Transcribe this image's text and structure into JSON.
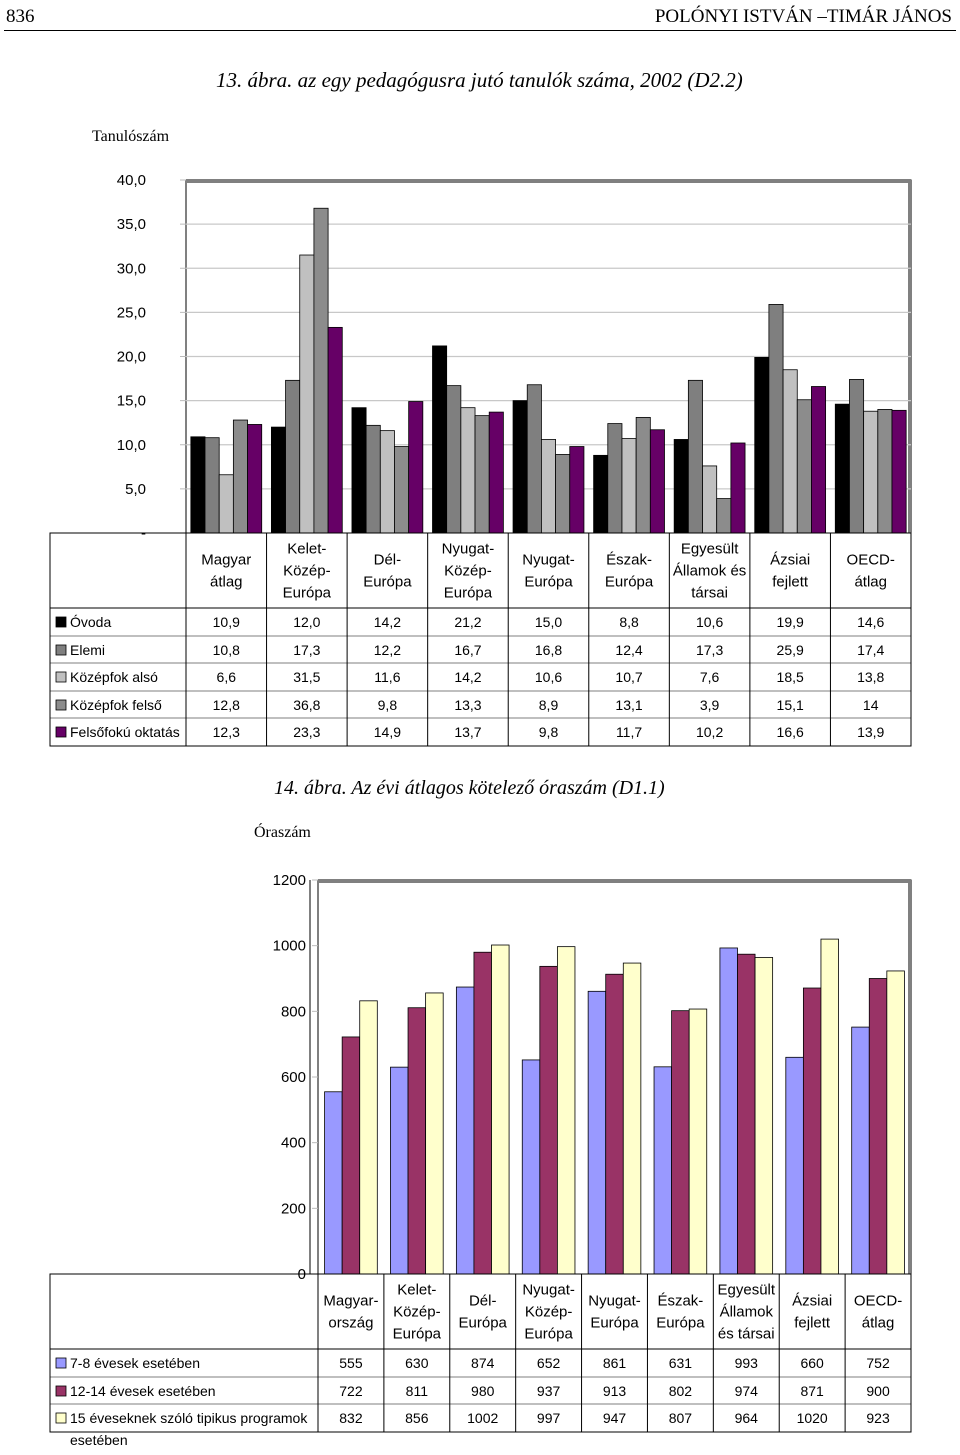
{
  "header": {
    "page_number": "836",
    "authors": "POLÓNYI ISTVÁN –TIMÁR JÁNOS"
  },
  "chart_data": [
    {
      "type": "bar",
      "title": "13. ábra. az egy pedagógusra jutó tanulók száma, 2002 (D2.2)",
      "ylabel": "Tanulószám",
      "ylim": [
        0,
        40
      ],
      "yticks": [
        "40,0",
        "35,0",
        "30,0",
        "25,0",
        "20,0",
        "15,0",
        "10,0",
        "5,0",
        "-"
      ],
      "grid": true,
      "legend": "table-below",
      "categories": [
        [
          "Magyar",
          "átlag"
        ],
        [
          "Kelet-",
          "Közép-",
          "Európa"
        ],
        [
          "Dél-",
          "Európa"
        ],
        [
          "Nyugat-",
          "Közép-",
          "Európa"
        ],
        [
          "Nyugat-",
          "Európa"
        ],
        [
          "Észak-",
          "Európa"
        ],
        [
          "Egyesült",
          "Államok és",
          "társai"
        ],
        [
          "Ázsiai",
          "fejlett"
        ],
        [
          "OECD-",
          "átlag"
        ]
      ],
      "series": [
        {
          "name": "Óvoda",
          "color": "#000000",
          "values": [
            10.9,
            12.0,
            14.2,
            21.2,
            15.0,
            8.8,
            10.6,
            19.9,
            14.6
          ],
          "labels": [
            "10,9",
            "12,0",
            "14,2",
            "21,2",
            "15,0",
            "8,8",
            "10,6",
            "19,9",
            "14,6"
          ]
        },
        {
          "name": "Elemi",
          "color": "#7f7f7f",
          "values": [
            10.8,
            17.3,
            12.2,
            16.7,
            16.8,
            12.4,
            17.3,
            25.9,
            17.4
          ],
          "labels": [
            "10,8",
            "17,3",
            "12,2",
            "16,7",
            "16,8",
            "12,4",
            "17,3",
            "25,9",
            "17,4"
          ]
        },
        {
          "name": "Középfok alsó",
          "color": "#c0c0c0",
          "values": [
            6.6,
            31.5,
            11.6,
            14.2,
            10.6,
            10.7,
            7.6,
            18.5,
            13.8
          ],
          "labels": [
            "6,6",
            "31,5",
            "11,6",
            "14,2",
            "10,6",
            "10,7",
            "7,6",
            "18,5",
            "13,8"
          ]
        },
        {
          "name": "Középfok felső",
          "color": "#8c8c8c",
          "values": [
            12.8,
            36.8,
            9.8,
            13.3,
            8.9,
            13.1,
            3.9,
            15.1,
            14
          ],
          "labels": [
            "12,8",
            "36,8",
            "9,8",
            "13,3",
            "8,9",
            "13,1",
            "3,9",
            "15,1",
            "14"
          ]
        },
        {
          "name": "Felsőfokú oktatás",
          "color": "#660066",
          "values": [
            12.3,
            23.3,
            14.9,
            13.7,
            9.8,
            11.7,
            10.2,
            16.6,
            13.9
          ],
          "labels": [
            "12,3",
            "23,3",
            "14,9",
            "13,7",
            "9,8",
            "11,7",
            "10,2",
            "16,6",
            "13,9"
          ]
        }
      ]
    },
    {
      "type": "bar",
      "title": "14. ábra. Az évi átlagos kötelező óraszám (D1.1)",
      "ylabel": "Óraszám",
      "ylim": [
        0,
        1200
      ],
      "yticks": [
        "1200",
        "1000",
        "800",
        "600",
        "400",
        "200",
        "0"
      ],
      "grid": false,
      "legend": "table-below",
      "categories": [
        [
          "Magyar-",
          "ország"
        ],
        [
          "Kelet-",
          "Közép-",
          "Európa"
        ],
        [
          "Dél-",
          "Európa"
        ],
        [
          "Nyugat-",
          "Közép-",
          "Európa"
        ],
        [
          "Nyugat-",
          "Európa"
        ],
        [
          "Észak-",
          "Európa"
        ],
        [
          "Egyesült",
          "Államok",
          "és társai"
        ],
        [
          "Ázsiai",
          "fejlett"
        ],
        [
          "OECD-",
          "átlag"
        ]
      ],
      "series": [
        {
          "name": [
            "7-8 évesek esetében"
          ],
          "color": "#9999ff",
          "values": [
            555,
            630,
            874,
            652,
            861,
            631,
            993,
            660,
            752
          ]
        },
        {
          "name": [
            "12-14 évesek esetében"
          ],
          "color": "#993366",
          "values": [
            722,
            811,
            980,
            937,
            913,
            802,
            974,
            871,
            900
          ]
        },
        {
          "name": [
            "15 éveseknek szóló tipikus programok",
            "esetében"
          ],
          "color": "#ffffcc",
          "values": [
            832,
            856,
            1002,
            997,
            947,
            807,
            964,
            1020,
            923
          ]
        }
      ]
    }
  ]
}
